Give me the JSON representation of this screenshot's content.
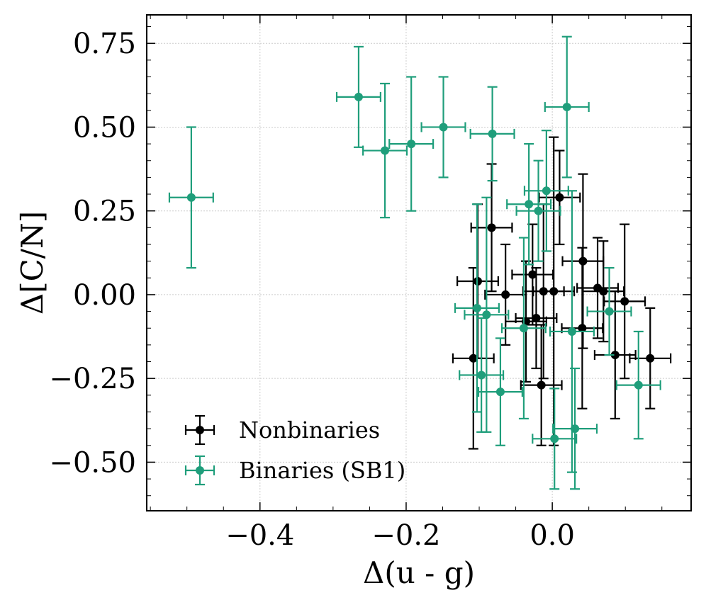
{
  "chart_data": {
    "type": "scatter",
    "xlabel": "Δ(u - g)",
    "ylabel": "Δ[C/N]",
    "xlim": [
      -0.555,
      0.19
    ],
    "ylim": [
      -0.645,
      0.835
    ],
    "x_ticks": [
      -0.4,
      -0.2,
      0.0
    ],
    "x_tick_labels": [
      "−0.4",
      "−0.2",
      "0.0"
    ],
    "y_ticks": [
      0.75,
      0.5,
      0.25,
      0.0,
      -0.25,
      -0.5
    ],
    "y_tick_labels": [
      "0.75",
      "0.50",
      "0.25",
      "0.00",
      "−0.25",
      "−0.50"
    ],
    "grid": true,
    "legend_position": "bottom-left",
    "series": [
      {
        "name": "Nonbinaries",
        "color": "#000000",
        "points": [
          {
            "x": -0.108,
            "y": -0.19,
            "xerr": 0.028,
            "yerr": 0.27
          },
          {
            "x": -0.102,
            "y": 0.04,
            "xerr": 0.028,
            "yerr": 0.23
          },
          {
            "x": -0.083,
            "y": 0.2,
            "xerr": 0.028,
            "yerr": 0.19
          },
          {
            "x": -0.064,
            "y": 0.0,
            "xerr": 0.028,
            "yerr": 0.15
          },
          {
            "x": -0.036,
            "y": -0.08,
            "xerr": 0.028,
            "yerr": 0.18
          },
          {
            "x": -0.027,
            "y": 0.06,
            "xerr": 0.028,
            "yerr": 0.15
          },
          {
            "x": -0.022,
            "y": -0.07,
            "xerr": 0.028,
            "yerr": 0.15
          },
          {
            "x": -0.015,
            "y": -0.27,
            "xerr": 0.028,
            "yerr": 0.18
          },
          {
            "x": -0.012,
            "y": 0.01,
            "xerr": 0.028,
            "yerr": 0.26
          },
          {
            "x": 0.002,
            "y": 0.01,
            "xerr": 0.028,
            "yerr": 0.46
          },
          {
            "x": 0.01,
            "y": 0.29,
            "xerr": 0.028,
            "yerr": 0.14
          },
          {
            "x": 0.041,
            "y": -0.1,
            "xerr": 0.028,
            "yerr": 0.24
          },
          {
            "x": 0.042,
            "y": 0.1,
            "xerr": 0.028,
            "yerr": 0.26
          },
          {
            "x": 0.062,
            "y": 0.02,
            "xerr": 0.028,
            "yerr": 0.15
          },
          {
            "x": 0.07,
            "y": 0.01,
            "xerr": 0.028,
            "yerr": 0.15
          },
          {
            "x": 0.086,
            "y": -0.18,
            "xerr": 0.028,
            "yerr": 0.19
          },
          {
            "x": 0.099,
            "y": -0.02,
            "xerr": 0.028,
            "yerr": 0.23
          },
          {
            "x": 0.134,
            "y": -0.19,
            "xerr": 0.028,
            "yerr": 0.15
          }
        ]
      },
      {
        "name": "Binaries (SB1)",
        "color": "#1f9e7b",
        "points": [
          {
            "x": -0.494,
            "y": 0.29,
            "xerr": 0.03,
            "yerr": 0.21
          },
          {
            "x": -0.265,
            "y": 0.59,
            "xerr": 0.03,
            "yerr": 0.15
          },
          {
            "x": -0.229,
            "y": 0.43,
            "xerr": 0.03,
            "yerr": 0.2
          },
          {
            "x": -0.193,
            "y": 0.45,
            "xerr": 0.03,
            "yerr": 0.2
          },
          {
            "x": -0.149,
            "y": 0.5,
            "xerr": 0.03,
            "yerr": 0.15
          },
          {
            "x": -0.082,
            "y": 0.48,
            "xerr": 0.03,
            "yerr": 0.14
          },
          {
            "x": -0.103,
            "y": -0.04,
            "xerr": 0.03,
            "yerr": 0.31
          },
          {
            "x": -0.097,
            "y": -0.24,
            "xerr": 0.03,
            "yerr": 0.17
          },
          {
            "x": -0.09,
            "y": -0.06,
            "xerr": 0.03,
            "yerr": 0.35
          },
          {
            "x": -0.071,
            "y": -0.29,
            "xerr": 0.03,
            "yerr": 0.16
          },
          {
            "x": -0.039,
            "y": -0.1,
            "xerr": 0.03,
            "yerr": 0.27
          },
          {
            "x": -0.032,
            "y": 0.27,
            "xerr": 0.03,
            "yerr": 0.18
          },
          {
            "x": -0.019,
            "y": 0.25,
            "xerr": 0.03,
            "yerr": 0.15
          },
          {
            "x": -0.008,
            "y": 0.31,
            "xerr": 0.03,
            "yerr": 0.18
          },
          {
            "x": 0.003,
            "y": -0.43,
            "xerr": 0.03,
            "yerr": 0.15
          },
          {
            "x": 0.02,
            "y": 0.56,
            "xerr": 0.03,
            "yerr": 0.21
          },
          {
            "x": 0.027,
            "y": -0.11,
            "xerr": 0.03,
            "yerr": 0.42
          },
          {
            "x": 0.031,
            "y": -0.4,
            "xerr": 0.03,
            "yerr": 0.18
          },
          {
            "x": 0.078,
            "y": -0.05,
            "xerr": 0.03,
            "yerr": 0.13
          },
          {
            "x": 0.118,
            "y": -0.27,
            "xerr": 0.03,
            "yerr": 0.16
          }
        ]
      }
    ]
  }
}
